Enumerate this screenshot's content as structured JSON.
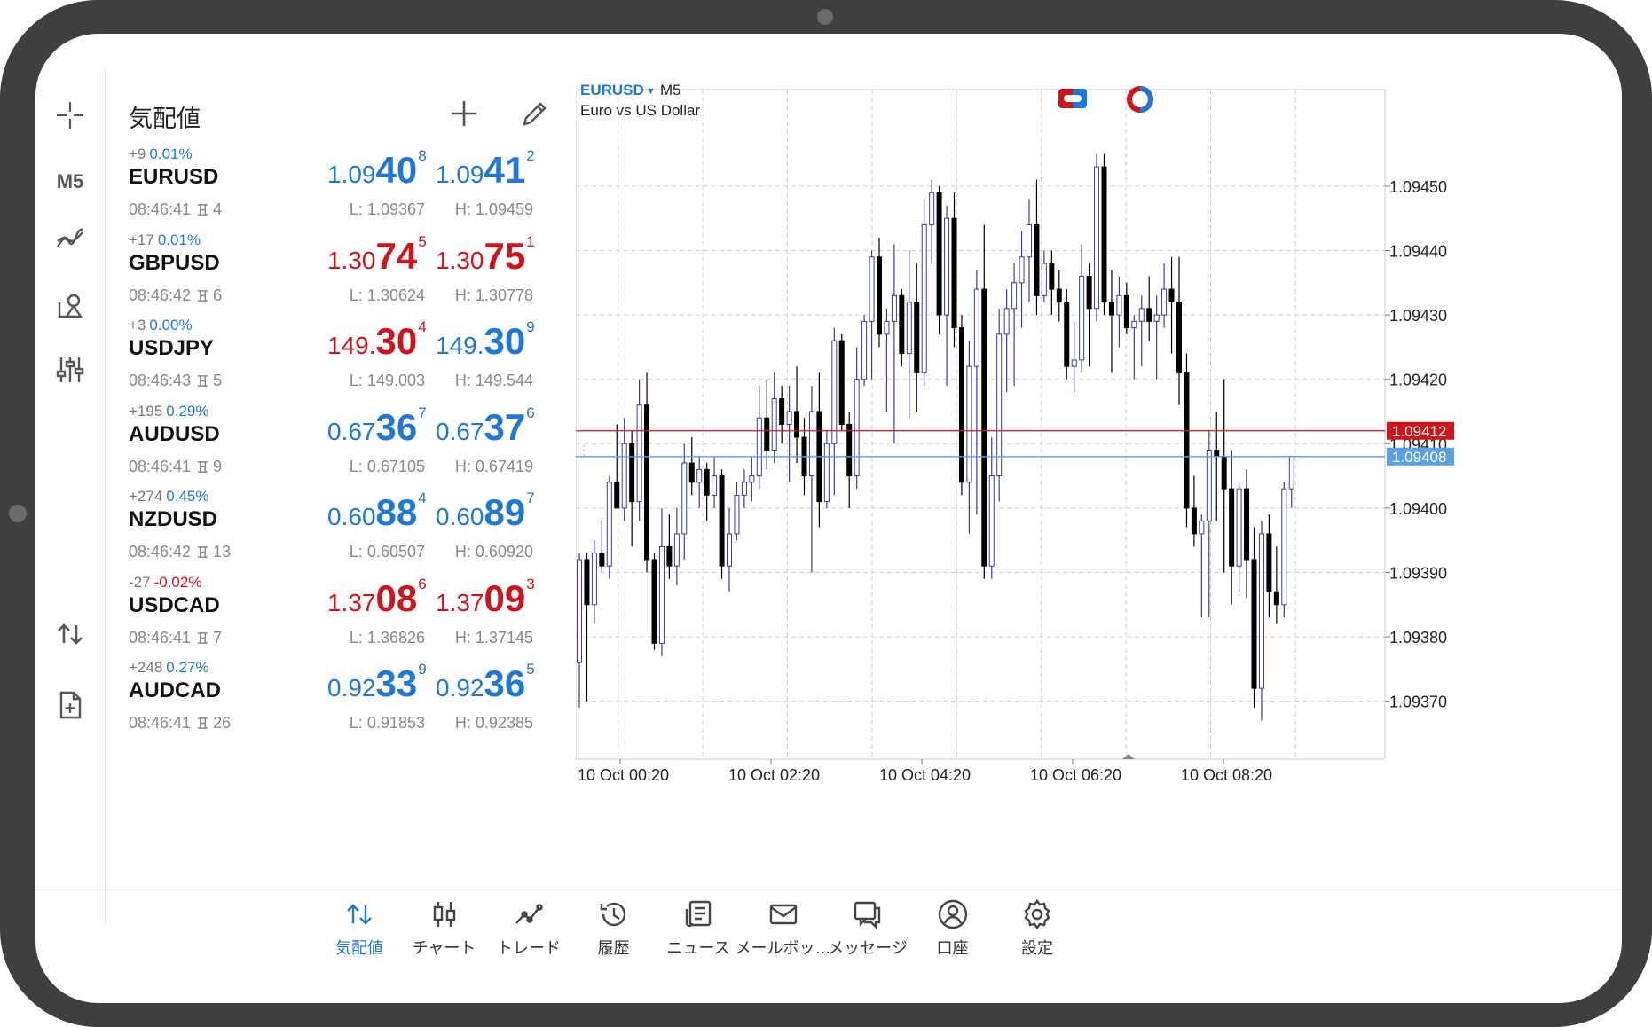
{
  "toolbar": {
    "timeframe": "M5"
  },
  "quotes": {
    "title": "気配値",
    "rows": [
      {
        "symbol": "EURUSD",
        "change": "+9",
        "pct": "0.01%",
        "pct_color": "blue",
        "time": "08:46:41",
        "spread": "4",
        "bid": {
          "small": "1.09",
          "big": "40",
          "sup": "8",
          "color": "blue"
        },
        "ask": {
          "small": "1.09",
          "big": "41",
          "sup": "2",
          "color": "blue"
        },
        "low": "L: 1.09367",
        "high": "H: 1.09459"
      },
      {
        "symbol": "GBPUSD",
        "change": "+17",
        "pct": "0.01%",
        "pct_color": "blue",
        "time": "08:46:42",
        "spread": "6",
        "bid": {
          "small": "1.30",
          "big": "74",
          "sup": "5",
          "color": "red"
        },
        "ask": {
          "small": "1.30",
          "big": "75",
          "sup": "1",
          "color": "red"
        },
        "low": "L: 1.30624",
        "high": "H: 1.30778"
      },
      {
        "symbol": "USDJPY",
        "change": "+3",
        "pct": "0.00%",
        "pct_color": "blue",
        "time": "08:46:43",
        "spread": "5",
        "bid": {
          "small": "149.",
          "big": "30",
          "sup": "4",
          "color": "red"
        },
        "ask": {
          "small": "149.",
          "big": "30",
          "sup": "9",
          "color": "blue"
        },
        "low": "L: 149.003",
        "high": "H: 149.544"
      },
      {
        "symbol": "AUDUSD",
        "change": "+195",
        "pct": "0.29%",
        "pct_color": "blue",
        "time": "08:46:41",
        "spread": "9",
        "bid": {
          "small": "0.67",
          "big": "36",
          "sup": "7",
          "color": "blue"
        },
        "ask": {
          "small": "0.67",
          "big": "37",
          "sup": "6",
          "color": "blue"
        },
        "low": "L: 0.67105",
        "high": "H: 0.67419"
      },
      {
        "symbol": "NZDUSD",
        "change": "+274",
        "pct": "0.45%",
        "pct_color": "blue",
        "time": "08:46:42",
        "spread": "13",
        "bid": {
          "small": "0.60",
          "big": "88",
          "sup": "4",
          "color": "blue"
        },
        "ask": {
          "small": "0.60",
          "big": "89",
          "sup": "7",
          "color": "blue"
        },
        "low": "L: 0.60507",
        "high": "H: 0.60920"
      },
      {
        "symbol": "USDCAD",
        "change": "-27",
        "pct": "-0.02%",
        "pct_color": "red",
        "time": "08:46:41",
        "spread": "7",
        "bid": {
          "small": "1.37",
          "big": "08",
          "sup": "6",
          "color": "red"
        },
        "ask": {
          "small": "1.37",
          "big": "09",
          "sup": "3",
          "color": "red"
        },
        "low": "L: 1.36826",
        "high": "H: 1.37145"
      },
      {
        "symbol": "AUDCAD",
        "change": "+248",
        "pct": "0.27%",
        "pct_color": "blue",
        "time": "08:46:41",
        "spread": "26",
        "bid": {
          "small": "0.92",
          "big": "33",
          "sup": "9",
          "color": "blue"
        },
        "ask": {
          "small": "0.92",
          "big": "36",
          "sup": "5",
          "color": "blue"
        },
        "low": "L: 0.91853",
        "high": "H: 0.92385"
      }
    ]
  },
  "chart": {
    "symbol": "EURUSD",
    "timeframe": "M5",
    "description": "Euro vs US Dollar",
    "price_labels": [
      "1.09450",
      "1.09440",
      "1.09430",
      "1.09420",
      "1.09410",
      "1.09400",
      "1.09390",
      "1.09380",
      "1.09370"
    ],
    "time_labels": [
      "10 Oct 00:20",
      "10 Oct 02:20",
      "10 Oct 04:20",
      "10 Oct 06:20",
      "10 Oct 08:20"
    ],
    "ask_line": {
      "label": "1.09412",
      "value": 1.09412,
      "color": "#d0141c"
    },
    "bid_line": {
      "label": "1.09408",
      "value": 1.09408,
      "color": "#5aa0e6"
    },
    "bull_color": "#3a3aa8",
    "bear_color": "#000000"
  },
  "chart_data": {
    "type": "candlestick",
    "ylim": [
      1.09361,
      1.09465
    ],
    "x": [
      "10 Oct 00:20",
      "10 Oct 02:20",
      "10 Oct 04:20",
      "10 Oct 06:20",
      "10 Oct 08:20"
    ],
    "candles": [
      {
        "o": 1.09376,
        "h": 1.09393,
        "l": 1.09369,
        "c": 1.09392
      },
      {
        "o": 1.09392,
        "h": 1.09393,
        "l": 1.0937,
        "c": 1.09385
      },
      {
        "o": 1.09385,
        "h": 1.09395,
        "l": 1.09382,
        "c": 1.09393
      },
      {
        "o": 1.09393,
        "h": 1.09398,
        "l": 1.0939,
        "c": 1.09391
      },
      {
        "o": 1.09391,
        "h": 1.09405,
        "l": 1.09389,
        "c": 1.09404
      },
      {
        "o": 1.09404,
        "h": 1.09413,
        "l": 1.094,
        "c": 1.094
      },
      {
        "o": 1.094,
        "h": 1.09414,
        "l": 1.09398,
        "c": 1.0941
      },
      {
        "o": 1.0941,
        "h": 1.09412,
        "l": 1.09394,
        "c": 1.09401
      },
      {
        "o": 1.09401,
        "h": 1.0942,
        "l": 1.09398,
        "c": 1.09416
      },
      {
        "o": 1.09416,
        "h": 1.09421,
        "l": 1.0939,
        "c": 1.09392
      },
      {
        "o": 1.09392,
        "h": 1.09393,
        "l": 1.09378,
        "c": 1.09379
      },
      {
        "o": 1.09379,
        "h": 1.094,
        "l": 1.09377,
        "c": 1.09394
      },
      {
        "o": 1.09394,
        "h": 1.09399,
        "l": 1.09389,
        "c": 1.09391
      },
      {
        "o": 1.09391,
        "h": 1.094,
        "l": 1.09388,
        "c": 1.09396
      },
      {
        "o": 1.09396,
        "h": 1.0941,
        "l": 1.09392,
        "c": 1.09407
      },
      {
        "o": 1.09407,
        "h": 1.09411,
        "l": 1.09402,
        "c": 1.09404
      },
      {
        "o": 1.09404,
        "h": 1.09408,
        "l": 1.094,
        "c": 1.09406
      },
      {
        "o": 1.09406,
        "h": 1.09407,
        "l": 1.09398,
        "c": 1.09402
      },
      {
        "o": 1.09402,
        "h": 1.09408,
        "l": 1.094,
        "c": 1.09405
      },
      {
        "o": 1.09405,
        "h": 1.09406,
        "l": 1.09389,
        "c": 1.09391
      },
      {
        "o": 1.09391,
        "h": 1.094,
        "l": 1.09387,
        "c": 1.09396
      },
      {
        "o": 1.09396,
        "h": 1.09404,
        "l": 1.09395,
        "c": 1.09402
      },
      {
        "o": 1.09402,
        "h": 1.09406,
        "l": 1.094,
        "c": 1.09404
      },
      {
        "o": 1.09404,
        "h": 1.09408,
        "l": 1.09401,
        "c": 1.09405
      },
      {
        "o": 1.09405,
        "h": 1.09419,
        "l": 1.09403,
        "c": 1.09414
      },
      {
        "o": 1.09414,
        "h": 1.0942,
        "l": 1.09406,
        "c": 1.09409
      },
      {
        "o": 1.09409,
        "h": 1.09421,
        "l": 1.09407,
        "c": 1.09417
      },
      {
        "o": 1.09417,
        "h": 1.09419,
        "l": 1.0941,
        "c": 1.09413
      },
      {
        "o": 1.09413,
        "h": 1.09419,
        "l": 1.09404,
        "c": 1.09415
      },
      {
        "o": 1.09415,
        "h": 1.09422,
        "l": 1.09407,
        "c": 1.09411
      },
      {
        "o": 1.09411,
        "h": 1.09414,
        "l": 1.09402,
        "c": 1.09405
      },
      {
        "o": 1.09405,
        "h": 1.09419,
        "l": 1.0939,
        "c": 1.09415
      },
      {
        "o": 1.09415,
        "h": 1.09421,
        "l": 1.09397,
        "c": 1.09401
      },
      {
        "o": 1.09401,
        "h": 1.09412,
        "l": 1.094,
        "c": 1.0941
      },
      {
        "o": 1.0941,
        "h": 1.09428,
        "l": 1.09402,
        "c": 1.09426
      },
      {
        "o": 1.09426,
        "h": 1.09427,
        "l": 1.09412,
        "c": 1.09413
      },
      {
        "o": 1.09413,
        "h": 1.09415,
        "l": 1.094,
        "c": 1.09405
      },
      {
        "o": 1.09405,
        "h": 1.09425,
        "l": 1.09403,
        "c": 1.0942
      },
      {
        "o": 1.0942,
        "h": 1.0943,
        "l": 1.09419,
        "c": 1.09429
      },
      {
        "o": 1.09429,
        "h": 1.0944,
        "l": 1.0942,
        "c": 1.09439
      },
      {
        "o": 1.09439,
        "h": 1.09442,
        "l": 1.09425,
        "c": 1.09427
      },
      {
        "o": 1.09427,
        "h": 1.09431,
        "l": 1.09415,
        "c": 1.09429
      },
      {
        "o": 1.09429,
        "h": 1.09441,
        "l": 1.0941,
        "c": 1.09433
      },
      {
        "o": 1.09433,
        "h": 1.09434,
        "l": 1.09422,
        "c": 1.09424
      },
      {
        "o": 1.09424,
        "h": 1.0944,
        "l": 1.09414,
        "c": 1.09432
      },
      {
        "o": 1.09432,
        "h": 1.09438,
        "l": 1.09415,
        "c": 1.09421
      },
      {
        "o": 1.09421,
        "h": 1.09448,
        "l": 1.09419,
        "c": 1.09444
      },
      {
        "o": 1.09444,
        "h": 1.09451,
        "l": 1.09438,
        "c": 1.09449
      },
      {
        "o": 1.09449,
        "h": 1.0945,
        "l": 1.09427,
        "c": 1.0943
      },
      {
        "o": 1.0943,
        "h": 1.09447,
        "l": 1.09419,
        "c": 1.09445
      },
      {
        "o": 1.09445,
        "h": 1.09449,
        "l": 1.09425,
        "c": 1.09428
      },
      {
        "o": 1.09428,
        "h": 1.0943,
        "l": 1.09402,
        "c": 1.09404
      },
      {
        "o": 1.09404,
        "h": 1.09426,
        "l": 1.09396,
        "c": 1.09422
      },
      {
        "o": 1.09422,
        "h": 1.09437,
        "l": 1.09399,
        "c": 1.09434
      },
      {
        "o": 1.09434,
        "h": 1.09444,
        "l": 1.09389,
        "c": 1.09391
      },
      {
        "o": 1.09391,
        "h": 1.09411,
        "l": 1.09389,
        "c": 1.09405
      },
      {
        "o": 1.09405,
        "h": 1.09431,
        "l": 1.09401,
        "c": 1.09427
      },
      {
        "o": 1.09427,
        "h": 1.09434,
        "l": 1.09418,
        "c": 1.09431
      },
      {
        "o": 1.09431,
        "h": 1.09438,
        "l": 1.09419,
        "c": 1.09435
      },
      {
        "o": 1.09435,
        "h": 1.09443,
        "l": 1.09428,
        "c": 1.09439
      },
      {
        "o": 1.09439,
        "h": 1.09448,
        "l": 1.09432,
        "c": 1.09444
      },
      {
        "o": 1.09444,
        "h": 1.09451,
        "l": 1.0943,
        "c": 1.09433
      },
      {
        "o": 1.09433,
        "h": 1.0944,
        "l": 1.09432,
        "c": 1.09438
      },
      {
        "o": 1.09438,
        "h": 1.0944,
        "l": 1.0943,
        "c": 1.09434
      },
      {
        "o": 1.09434,
        "h": 1.09437,
        "l": 1.09429,
        "c": 1.09432
      },
      {
        "o": 1.09432,
        "h": 1.09434,
        "l": 1.0942,
        "c": 1.09422
      },
      {
        "o": 1.09422,
        "h": 1.09429,
        "l": 1.09418,
        "c": 1.09423
      },
      {
        "o": 1.09423,
        "h": 1.09441,
        "l": 1.09421,
        "c": 1.09436
      },
      {
        "o": 1.09436,
        "h": 1.09438,
        "l": 1.09422,
        "c": 1.09431
      },
      {
        "o": 1.09431,
        "h": 1.09455,
        "l": 1.09429,
        "c": 1.09453
      },
      {
        "o": 1.09453,
        "h": 1.09455,
        "l": 1.0943,
        "c": 1.09432
      },
      {
        "o": 1.09432,
        "h": 1.09437,
        "l": 1.09421,
        "c": 1.0943
      },
      {
        "o": 1.0943,
        "h": 1.09436,
        "l": 1.09425,
        "c": 1.09433
      },
      {
        "o": 1.09433,
        "h": 1.09435,
        "l": 1.09427,
        "c": 1.09428
      },
      {
        "o": 1.09428,
        "h": 1.0943,
        "l": 1.0942,
        "c": 1.09429
      },
      {
        "o": 1.09429,
        "h": 1.09433,
        "l": 1.09422,
        "c": 1.09431
      },
      {
        "o": 1.09431,
        "h": 1.09436,
        "l": 1.09426,
        "c": 1.09429
      },
      {
        "o": 1.09429,
        "h": 1.09433,
        "l": 1.0942,
        "c": 1.0943
      },
      {
        "o": 1.0943,
        "h": 1.09438,
        "l": 1.09428,
        "c": 1.09434
      },
      {
        "o": 1.09434,
        "h": 1.09439,
        "l": 1.09424,
        "c": 1.09432
      },
      {
        "o": 1.09432,
        "h": 1.09439,
        "l": 1.09416,
        "c": 1.09421
      },
      {
        "o": 1.09421,
        "h": 1.09424,
        "l": 1.09397,
        "c": 1.094
      },
      {
        "o": 1.094,
        "h": 1.09405,
        "l": 1.09394,
        "c": 1.09396
      },
      {
        "o": 1.09396,
        "h": 1.09399,
        "l": 1.09383,
        "c": 1.09398
      },
      {
        "o": 1.09398,
        "h": 1.09412,
        "l": 1.09383,
        "c": 1.09409
      },
      {
        "o": 1.09409,
        "h": 1.09415,
        "l": 1.09398,
        "c": 1.09408
      },
      {
        "o": 1.09408,
        "h": 1.0942,
        "l": 1.0939,
        "c": 1.09403
      },
      {
        "o": 1.09403,
        "h": 1.09409,
        "l": 1.09385,
        "c": 1.09391
      },
      {
        "o": 1.09391,
        "h": 1.09404,
        "l": 1.09387,
        "c": 1.09403
      },
      {
        "o": 1.09403,
        "h": 1.09406,
        "l": 1.09386,
        "c": 1.09392
      },
      {
        "o": 1.09392,
        "h": 1.09397,
        "l": 1.09369,
        "c": 1.09372
      },
      {
        "o": 1.09372,
        "h": 1.09398,
        "l": 1.09367,
        "c": 1.09396
      },
      {
        "o": 1.09396,
        "h": 1.09399,
        "l": 1.09383,
        "c": 1.09387
      },
      {
        "o": 1.09387,
        "h": 1.09394,
        "l": 1.09382,
        "c": 1.09385
      },
      {
        "o": 1.09385,
        "h": 1.09404,
        "l": 1.09383,
        "c": 1.09403
      },
      {
        "o": 1.09403,
        "h": 1.09408,
        "l": 1.094,
        "c": 1.09408
      }
    ]
  },
  "bottom_nav": [
    {
      "label": "気配値",
      "icon": "arrows-updown-icon",
      "active": true
    },
    {
      "label": "チャート",
      "icon": "candles-icon",
      "active": false
    },
    {
      "label": "トレード",
      "icon": "trend-icon",
      "active": false
    },
    {
      "label": "履歴",
      "icon": "history-icon",
      "active": false
    },
    {
      "label": "ニュース",
      "icon": "news-icon",
      "active": false
    },
    {
      "label": "メールボッ…",
      "icon": "mail-icon",
      "active": false
    },
    {
      "label": "メッセージ",
      "icon": "messages-icon",
      "active": false
    },
    {
      "label": "口座",
      "icon": "account-icon",
      "active": false
    },
    {
      "label": "設定",
      "icon": "settings-icon",
      "active": false
    }
  ]
}
